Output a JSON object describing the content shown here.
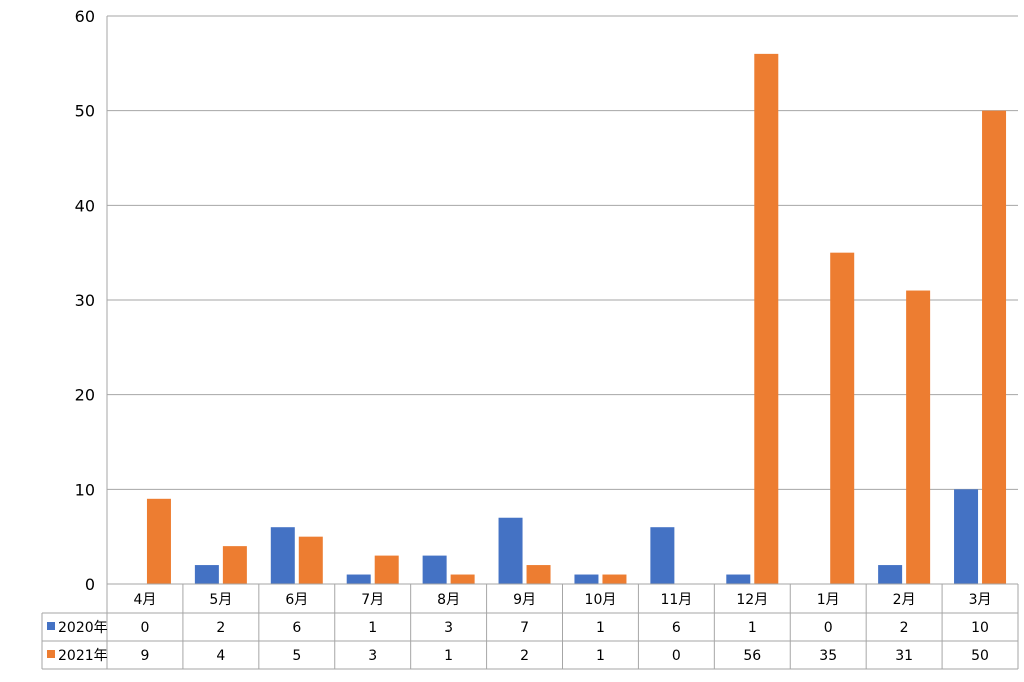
{
  "chart_data": {
    "type": "bar",
    "title": "",
    "xlabel": "",
    "ylabel": "",
    "ylim": [
      0,
      60
    ],
    "yticks": [
      0,
      10,
      20,
      30,
      40,
      50,
      60
    ],
    "grid": true,
    "legend": "data-table-left",
    "categories": [
      "4月",
      "5月",
      "6月",
      "7月",
      "8月",
      "9月",
      "10月",
      "11月",
      "12月",
      "1月",
      "2月",
      "3月"
    ],
    "series": [
      {
        "name": "2020年",
        "color": "#4472C4",
        "values": [
          0,
          2,
          6,
          1,
          3,
          7,
          1,
          6,
          1,
          0,
          2,
          10
        ]
      },
      {
        "name": "2021年",
        "color": "#ED7D31",
        "values": [
          9,
          4,
          5,
          3,
          1,
          2,
          1,
          0,
          56,
          35,
          31,
          50
        ]
      }
    ]
  }
}
